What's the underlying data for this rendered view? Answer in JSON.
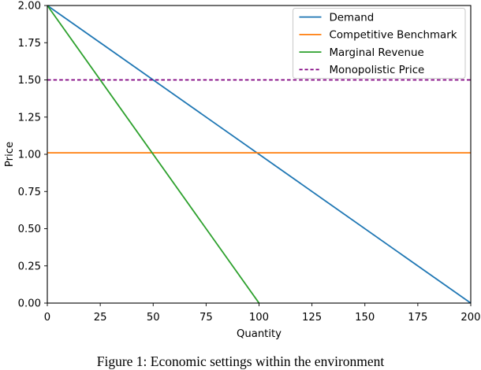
{
  "figure": {
    "caption": "Figure 1: Economic settings within the environment"
  },
  "chart_data": {
    "type": "line",
    "title": "",
    "xlabel": "Quantity",
    "ylabel": "Price",
    "xlim": [
      0,
      200
    ],
    "ylim": [
      0.0,
      2.0
    ],
    "xticks": [
      "0",
      "25",
      "50",
      "75",
      "100",
      "125",
      "150",
      "175",
      "200"
    ],
    "xtick_values": [
      0,
      25,
      50,
      75,
      100,
      125,
      150,
      175,
      200
    ],
    "yticks": [
      "0.00",
      "0.25",
      "0.50",
      "0.75",
      "1.00",
      "1.25",
      "1.50",
      "1.75",
      "2.00"
    ],
    "ytick_values": [
      0.0,
      0.25,
      0.5,
      0.75,
      1.0,
      1.25,
      1.5,
      1.75,
      2.0
    ],
    "grid": false,
    "legend_position": "upper right",
    "series": [
      {
        "name": "Demand",
        "color": "#1f77b4",
        "style": "solid",
        "points": [
          [
            0,
            2.0
          ],
          [
            200,
            0.0
          ]
        ]
      },
      {
        "name": "Competitive Benchmark",
        "color": "#ff7f0e",
        "style": "solid",
        "points": [
          [
            0,
            1.01
          ],
          [
            200,
            1.01
          ]
        ]
      },
      {
        "name": "Marginal Revenue",
        "color": "#2ca02c",
        "style": "solid",
        "points": [
          [
            0,
            2.0
          ],
          [
            100,
            0.0
          ]
        ]
      },
      {
        "name": "Monopolistic Price",
        "color": "#800080",
        "style": "dashed",
        "points": [
          [
            0,
            1.5
          ],
          [
            200,
            1.5
          ]
        ]
      }
    ],
    "colors": {
      "spine": "#000000",
      "legend_border": "#cccccc",
      "background": "#ffffff"
    }
  }
}
